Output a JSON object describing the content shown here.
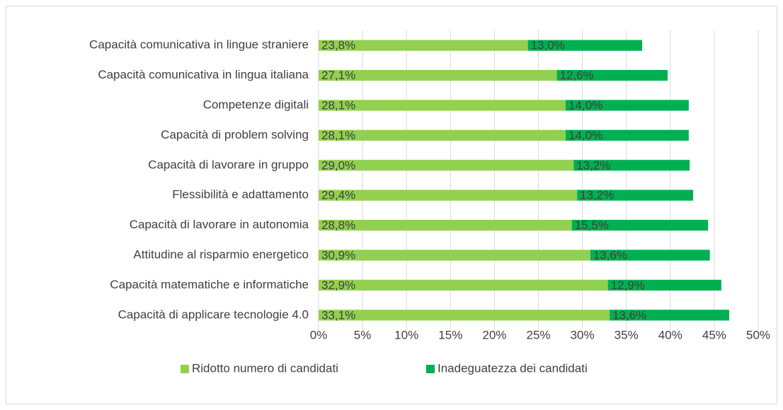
{
  "chart_data": {
    "type": "stacked-bar-horizontal",
    "categories": [
      "Capacità comunicativa in lingue straniere",
      "Capacità comunicativa in lingua italiana",
      "Competenze digitali",
      "Capacità di problem solving",
      "Capacità di lavorare in gruppo",
      "Flessibilità e adattamento",
      "Capacità di lavorare in autonomia",
      "Attitudine al risparmio energetico",
      "Capacità matematiche e informatiche",
      "Capacità di applicare tecnologie 4.0"
    ],
    "series": [
      {
        "name": "Ridotto numero di candidati",
        "color": "#92d050",
        "values": [
          23.8,
          27.1,
          28.1,
          28.1,
          29.0,
          29.4,
          28.8,
          30.9,
          32.9,
          33.1
        ],
        "value_labels": [
          "23,8%",
          "27,1%",
          "28,1%",
          "28,1%",
          "29,0%",
          "29,4%",
          "28,8%",
          "30,9%",
          "32,9%",
          "33,1%"
        ]
      },
      {
        "name": "Inadeguatezza dei candidati",
        "color": "#00b050",
        "values": [
          13.0,
          12.6,
          14.0,
          14.0,
          13.2,
          13.2,
          15.5,
          13.6,
          12.9,
          13.6
        ],
        "value_labels": [
          "13,0%",
          "12,6%",
          "14,0%",
          "14,0%",
          "13,2%",
          "13,2%",
          "15,5%",
          "13,6%",
          "12,9%",
          "13,6%"
        ]
      }
    ],
    "xlim": [
      0,
      50
    ],
    "xticks": [
      {
        "value": 0,
        "label": "0%"
      },
      {
        "value": 5,
        "label": "5%"
      },
      {
        "value": 10,
        "label": "10%"
      },
      {
        "value": 15,
        "label": "15%"
      },
      {
        "value": 20,
        "label": "20%"
      },
      {
        "value": 25,
        "label": "25%"
      },
      {
        "value": 30,
        "label": "30%"
      },
      {
        "value": 35,
        "label": "35%"
      },
      {
        "value": 40,
        "label": "40%"
      },
      {
        "value": 45,
        "label": "45%"
      },
      {
        "value": 50,
        "label": "50%"
      }
    ],
    "grid": true,
    "legend": "bottom"
  }
}
